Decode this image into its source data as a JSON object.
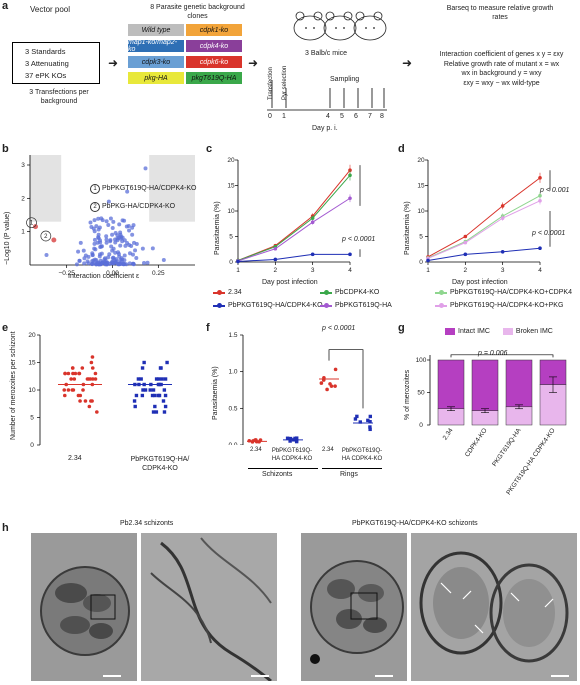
{
  "panel_a": {
    "label": "a",
    "vector_pool_title": "Vector pool",
    "vector_pool_lines": [
      "3 Standards",
      "3 Attenuating",
      "37 ePK KOs"
    ],
    "transfections": "3 Transfections per background",
    "clones_title": "8 Parasite genetic background clones",
    "clones": [
      {
        "text": "Wild type",
        "color": "#bdbdbd"
      },
      {
        "text": "cdpk1-ko",
        "color": "#f2a43a"
      },
      {
        "text": "map1-ko/map2-ko",
        "color": "#2e6fb5"
      },
      {
        "text": "cdpk4-ko",
        "color": "#8a3f9a"
      },
      {
        "text": "cdpk3-ko",
        "color": "#6a9fd4"
      },
      {
        "text": "cdpk6-ko",
        "color": "#d9342b"
      },
      {
        "text": "pkg-HA",
        "color": "#e8e83a"
      },
      {
        "text": "pkgT619Q-HA",
        "color": "#3aa84a"
      }
    ],
    "mice_label": "3 Balb/c mice",
    "timeline_transfection": "Transfection",
    "timeline_pyr": "Pyr selection",
    "timeline_sampling": "Sampling",
    "timeline_ticks": [
      "0",
      "1",
      "4",
      "5",
      "6",
      "7",
      "8"
    ],
    "timeline_axis": "Day p. i.",
    "barseq_title": "Barseq to measure relative growth rates",
    "interaction_line": "Interaction coefficient of genes x y = εxy",
    "growth_line1": "Relative growth rate of mutant x = wx",
    "growth_line2": "wx in background y = wxy",
    "formula": "εxy = wxy − wx wild-type"
  },
  "panel_b": {
    "label": "b",
    "ylabel": "−Log10 (P value)",
    "xlabel": "Interaction coefficient ε",
    "xticks": [
      "−0.25",
      "0.00",
      "0.25"
    ],
    "yticks": [
      "1",
      "2",
      "3"
    ],
    "legend": [
      {
        "num": "1",
        "text": "PbPKGT619Q-HA/CDPK4-KO"
      },
      {
        "num": "2",
        "text": "PbPKG-HA/CDPK4-KO"
      }
    ]
  },
  "panel_c": {
    "label": "c",
    "ylabel": "Parasitaemia (%)",
    "xlabel": "Day post infection",
    "pvalue": "p < 0.0001"
  },
  "panel_d": {
    "label": "d",
    "ylabel": "Parasitaemia (%)",
    "xlabel": "Day post infection",
    "pvalue1": "p < 0.001",
    "pvalue2": "p < 0.0001"
  },
  "legend_cd": [
    {
      "text": "2.34",
      "color": "#d9342b"
    },
    {
      "text": "PbCDPK4-KO",
      "color": "#3aa84a"
    },
    {
      "text": "PbPKGT619Q-HA/CDPK4-KO+CDPK4",
      "color": "#8fd68f"
    },
    {
      "text": "PbPKGT619Q-HA/CDPK4-KO",
      "color": "#1f2fb5"
    },
    {
      "text": "PbPKGT619Q-HA",
      "color": "#a35ad1"
    },
    {
      "text": "PbPKGT619Q-HA/CDPK4-KO+PKG",
      "color": "#e0a0e8"
    }
  ],
  "panel_e": {
    "label": "e",
    "ylabel": "Number of merozoites per schizont",
    "yticks": [
      "0",
      "5",
      "10",
      "15",
      "20"
    ],
    "groups": [
      "2.34",
      "PbPKGT619Q-HA/ CDPK4-KO"
    ]
  },
  "panel_f": {
    "label": "f",
    "ylabel": "Parasitaemia (%)",
    "yticks": [
      "0.0",
      "0.5",
      "1.0",
      "1.5"
    ],
    "pvalue": "p < 0.0001",
    "ticklabels": [
      "2.34",
      "PbPKGT619Q-HA CDPK4-KO",
      "2.34",
      "PbPKGT619Q-HA CDPK4-KO"
    ],
    "group1": "Schizonts",
    "group2": "Rings"
  },
  "panel_g": {
    "label": "g",
    "ylabel": "% of merozoites",
    "yticks": [
      "0",
      "50",
      "100"
    ],
    "legend_intact": "Intact IMC",
    "legend_broken": "Broken IMC",
    "pvalue": "p = 0.006",
    "categories": [
      "2.34",
      "CDPK4-KO",
      "PKGT619Q-HA",
      "PKGT619Q-HA CDPK4-KO"
    ],
    "color_intact": "#b53fc1",
    "color_broken": "#e8b6ec"
  },
  "panel_h": {
    "label": "h",
    "title_left": "Pb2.34 schizonts",
    "title_right": "PbPKGT619Q-HA/CDPK4-KO schizonts"
  },
  "chart_data": [
    {
      "type": "scatter",
      "panel": "b",
      "xlabel": "Interaction coefficient ε",
      "ylabel": "−Log10 (P value)",
      "xlim": [
        -0.45,
        0.45
      ],
      "ylim": [
        0,
        3.3
      ],
      "highlighted": [
        {
          "label": "1",
          "x": -0.42,
          "y": 1.15
        },
        {
          "label": "2",
          "x": -0.32,
          "y": 0.75
        }
      ]
    },
    {
      "type": "line",
      "panel": "c",
      "xlabel": "Day post infection",
      "ylabel": "Parasitaemia (%)",
      "x": [
        1,
        2,
        3,
        4
      ],
      "ylim": [
        0,
        20
      ],
      "yticks": [
        0,
        5,
        10,
        15,
        20
      ],
      "series": [
        {
          "name": "2.34",
          "values": [
            0.3,
            3.2,
            9.0,
            18.0
          ]
        },
        {
          "name": "PbCDPK4-KO",
          "values": [
            0.3,
            3.0,
            8.6,
            17.0
          ]
        },
        {
          "name": "PbPKGT619Q-HA",
          "values": [
            0.2,
            2.6,
            7.8,
            12.5
          ]
        },
        {
          "name": "PbPKGT619Q-HA/CDPK4-KO",
          "values": [
            0.1,
            0.5,
            1.5,
            1.5
          ]
        }
      ]
    },
    {
      "type": "line",
      "panel": "d",
      "xlabel": "Day post infection",
      "ylabel": "Parasitaemia (%)",
      "x": [
        1,
        2,
        3,
        4
      ],
      "ylim": [
        0,
        20
      ],
      "yticks": [
        0,
        5,
        10,
        15,
        20
      ],
      "series": [
        {
          "name": "2.34",
          "values": [
            1.0,
            5.0,
            11.0,
            16.5
          ]
        },
        {
          "name": "PbPKGT619Q-HA/CDPK4-KO+CDPK4",
          "values": [
            0.8,
            4.0,
            9.0,
            13.0
          ]
        },
        {
          "name": "PbPKGT619Q-HA/CDPK4-KO+PKG",
          "values": [
            0.7,
            3.8,
            8.6,
            12.0
          ]
        },
        {
          "name": "PbPKGT619Q-HA/CDPK4-KO",
          "values": [
            0.3,
            1.5,
            2.0,
            2.7
          ]
        }
      ]
    },
    {
      "type": "scatter",
      "panel": "e",
      "ylabel": "Number of merozoites per schizont",
      "ylim": [
        0,
        20
      ],
      "series": [
        {
          "name": "2.34",
          "mean": 11
        },
        {
          "name": "PbPKGT619Q-HA/ CDPK4-KO",
          "mean": 11
        }
      ]
    },
    {
      "type": "scatter",
      "panel": "f",
      "ylabel": "Parasitaemia (%)",
      "ylim": [
        0,
        1.5
      ],
      "series": [
        {
          "name": "Schizonts 2.34",
          "mean": 0.05
        },
        {
          "name": "Schizonts PbPKGT619Q-HA CDPK4-KO",
          "mean": 0.07
        },
        {
          "name": "Rings 2.34",
          "mean": 0.9
        },
        {
          "name": "Rings PbPKGT619Q-HA CDPK4-KO",
          "mean": 0.3
        }
      ]
    },
    {
      "type": "bar",
      "panel": "g",
      "ylabel": "% of merozoites",
      "ylim": [
        0,
        100
      ],
      "categories": [
        "2.34",
        "CDPK4-KO",
        "PKGT619Q-HA",
        "PKGT619Q-HA CDPK4-KO"
      ],
      "series": [
        {
          "name": "Broken IMC",
          "values": [
            25,
            22,
            28,
            62
          ]
        },
        {
          "name": "Intact IMC",
          "values": [
            75,
            78,
            72,
            38
          ]
        }
      ]
    }
  ]
}
